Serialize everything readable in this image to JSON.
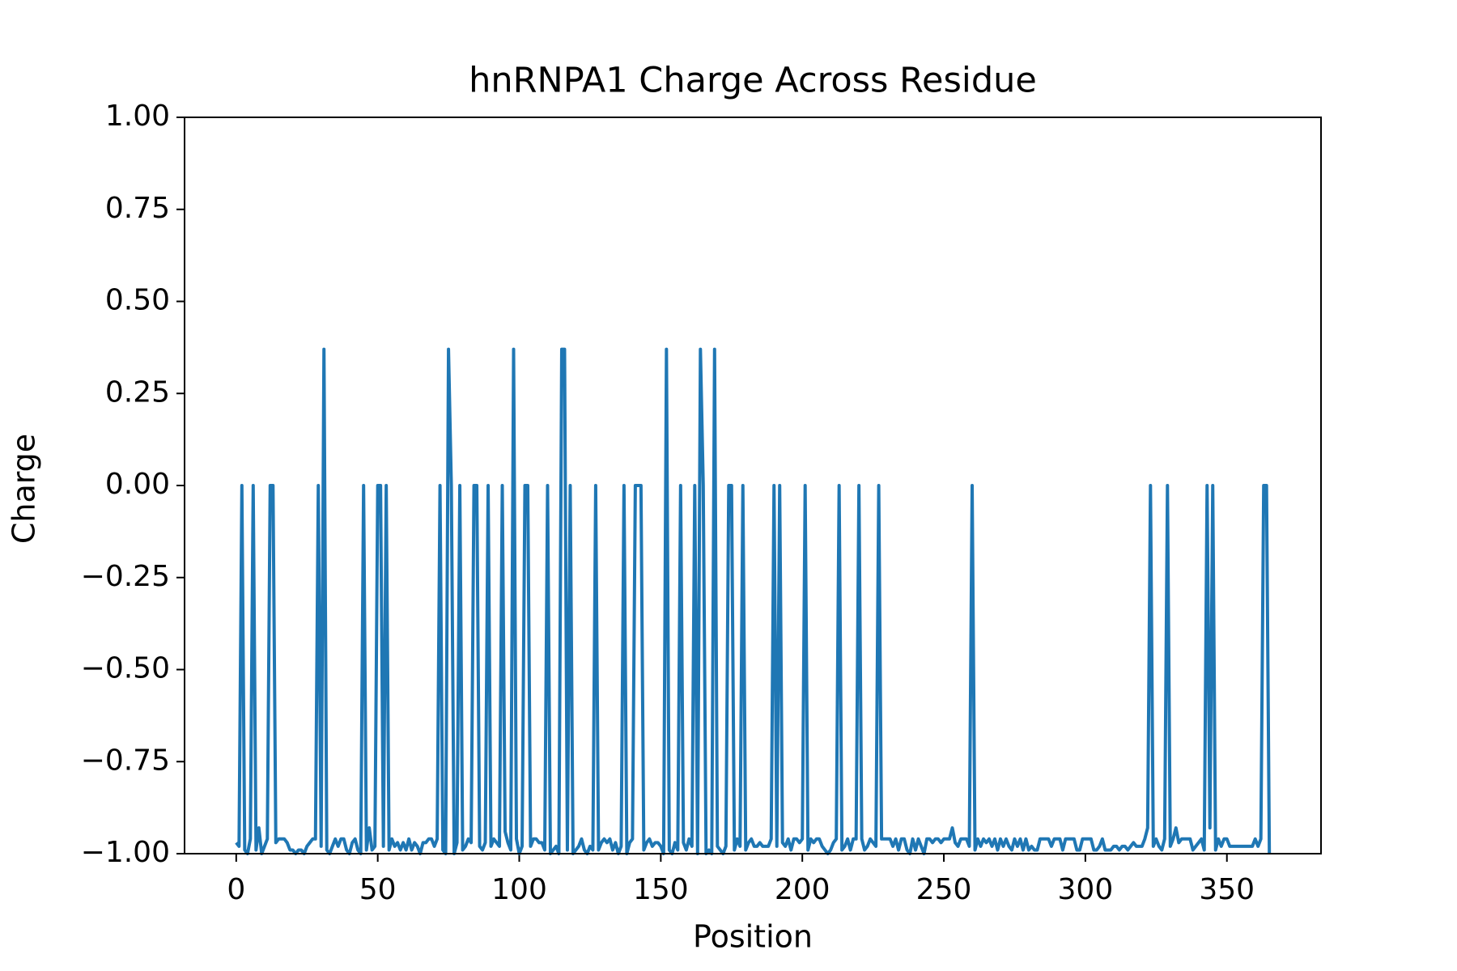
{
  "chart_data": {
    "type": "line",
    "title": "hnRNPA1 Charge Across Residue",
    "xlabel": "Position",
    "ylabel": "Charge",
    "color": "#1f77b4",
    "xlim": [
      -18.25,
      383.25
    ],
    "ylim": [
      -1,
      1
    ],
    "xticks": [
      0,
      50,
      100,
      150,
      200,
      250,
      300,
      350
    ],
    "yticks": [
      {
        "value": -1,
        "label": "−1.00"
      },
      {
        "value": -0.75,
        "label": "−0.75"
      },
      {
        "value": -0.5,
        "label": "−0.50"
      },
      {
        "value": -0.25,
        "label": "−0.25"
      },
      {
        "value": 0,
        "label": "0.00"
      },
      {
        "value": 0.25,
        "label": "0.25"
      },
      {
        "value": 0.5,
        "label": "0.50"
      },
      {
        "value": 0.75,
        "label": "0.75"
      },
      {
        "value": 1,
        "label": "1.00"
      }
    ],
    "x": [
      0,
      1,
      2,
      3,
      4,
      5,
      6,
      7,
      8,
      9,
      10,
      11,
      12,
      13,
      14,
      15,
      16,
      17,
      18,
      19,
      20,
      21,
      22,
      23,
      24,
      25,
      26,
      27,
      28,
      29,
      30,
      31,
      32,
      33,
      34,
      35,
      36,
      37,
      38,
      39,
      40,
      41,
      42,
      43,
      44,
      45,
      46,
      47,
      48,
      49,
      50,
      51,
      52,
      53,
      54,
      55,
      56,
      57,
      58,
      59,
      60,
      61,
      62,
      63,
      64,
      65,
      66,
      67,
      68,
      69,
      70,
      71,
      72,
      73,
      74,
      75,
      76,
      77,
      78,
      79,
      80,
      81,
      82,
      83,
      84,
      85,
      86,
      87,
      88,
      89,
      90,
      91,
      92,
      93,
      94,
      95,
      96,
      97,
      98,
      99,
      100,
      101,
      102,
      103,
      104,
      105,
      106,
      107,
      108,
      109,
      110,
      111,
      112,
      113,
      114,
      115,
      116,
      117,
      118,
      119,
      120,
      121,
      122,
      123,
      124,
      125,
      126,
      127,
      128,
      129,
      130,
      131,
      132,
      133,
      134,
      135,
      136,
      137,
      138,
      139,
      140,
      141,
      142,
      143,
      144,
      145,
      146,
      147,
      148,
      149,
      150,
      151,
      152,
      153,
      154,
      155,
      156,
      157,
      158,
      159,
      160,
      161,
      162,
      163,
      164,
      165,
      166,
      167,
      168,
      169,
      170,
      171,
      172,
      173,
      174,
      175,
      176,
      177,
      178,
      179,
      180,
      181,
      182,
      183,
      184,
      185,
      186,
      187,
      188,
      189,
      190,
      191,
      192,
      193,
      194,
      195,
      196,
      197,
      198,
      199,
      200,
      201,
      202,
      203,
      204,
      205,
      206,
      207,
      208,
      209,
      210,
      211,
      212,
      213,
      214,
      215,
      216,
      217,
      218,
      219,
      220,
      221,
      222,
      223,
      224,
      225,
      226,
      227,
      228,
      229,
      230,
      231,
      232,
      233,
      234,
      235,
      236,
      237,
      238,
      239,
      240,
      241,
      242,
      243,
      244,
      245,
      246,
      247,
      248,
      249,
      250,
      251,
      252,
      253,
      254,
      255,
      256,
      257,
      258,
      259,
      260,
      261,
      262,
      263,
      264,
      265,
      266,
      267,
      268,
      269,
      270,
      271,
      272,
      273,
      274,
      275,
      276,
      277,
      278,
      279,
      280,
      281,
      282,
      283,
      284,
      285,
      286,
      287,
      288,
      289,
      290,
      291,
      292,
      293,
      294,
      295,
      296,
      297,
      298,
      299,
      300,
      301,
      302,
      303,
      304,
      305,
      306,
      307,
      308,
      309,
      310,
      311,
      312,
      313,
      314,
      315,
      316,
      317,
      318,
      319,
      320,
      321,
      322,
      323,
      324,
      325,
      326,
      327,
      328,
      329,
      330,
      331,
      332,
      333,
      334,
      335,
      336,
      337,
      338,
      339,
      340,
      341,
      342,
      343,
      344,
      345,
      346,
      347,
      348,
      349,
      350,
      351,
      352,
      353,
      354,
      355,
      356,
      357,
      358,
      359,
      360,
      361,
      362,
      363,
      364,
      365
    ],
    "values": [
      -0.97,
      -0.98,
      0,
      -0.99,
      -1,
      -0.96,
      0,
      -0.99,
      -0.93,
      -1,
      -0.98,
      -0.96,
      0,
      0,
      -0.97,
      -0.96,
      -0.96,
      -0.96,
      -0.97,
      -0.99,
      -0.99,
      -1,
      -0.99,
      -0.99,
      -1,
      -0.98,
      -0.97,
      -0.96,
      -0.96,
      0,
      -0.98,
      0.37,
      -0.99,
      -1,
      -0.98,
      -0.96,
      -0.98,
      -0.96,
      -0.96,
      -0.99,
      -1,
      -0.97,
      -0.96,
      -0.99,
      -1,
      0,
      -0.99,
      -0.93,
      -0.99,
      -0.98,
      0,
      0,
      -0.98,
      0,
      -0.99,
      -0.96,
      -0.98,
      -0.97,
      -0.99,
      -0.97,
      -0.99,
      -0.96,
      -0.99,
      -0.97,
      -0.98,
      -1,
      -0.97,
      -0.97,
      -0.96,
      -0.96,
      -0.98,
      -0.96,
      0,
      -0.99,
      -1,
      0.37,
      0,
      -1,
      -0.97,
      0,
      -0.99,
      -0.98,
      -0.96,
      -0.97,
      0,
      0,
      -0.98,
      -0.99,
      -0.97,
      0,
      -0.98,
      -0.96,
      -0.97,
      -0.98,
      0,
      -0.94,
      -0.97,
      -0.99,
      0.37,
      -0.96,
      -1,
      -0.98,
      0,
      0,
      -0.98,
      -0.96,
      -0.96,
      -0.97,
      -0.97,
      -0.99,
      0,
      -1,
      -0.99,
      -0.98,
      -1,
      0.37,
      0.37,
      -0.99,
      0,
      -1,
      -0.99,
      -0.98,
      -0.96,
      -0.99,
      -1,
      -0.98,
      -0.99,
      0,
      -0.99,
      -0.97,
      -0.96,
      -0.97,
      -0.96,
      -0.99,
      -0.97,
      -1,
      -0.98,
      0,
      -1,
      -0.97,
      -0.96,
      0,
      0,
      0,
      -0.99,
      -0.97,
      -0.96,
      -0.98,
      -0.97,
      -0.97,
      -0.98,
      -1,
      0.37,
      -0.99,
      -1,
      -0.97,
      -0.99,
      0,
      -0.97,
      -0.99,
      -0.96,
      -0.98,
      0,
      -1,
      0.37,
      0,
      -1,
      -0.99,
      -1,
      0.37,
      -0.98,
      -0.99,
      -1,
      -0.98,
      0,
      0,
      -0.99,
      -0.96,
      -0.98,
      0,
      -0.99,
      -0.97,
      -0.96,
      -0.98,
      -0.98,
      -0.97,
      -0.98,
      -0.98,
      -0.98,
      -0.96,
      0,
      -0.98,
      0,
      -0.97,
      -0.98,
      -0.96,
      -0.99,
      -0.96,
      -0.96,
      -0.97,
      -0.96,
      0,
      -0.99,
      -0.96,
      -0.97,
      -0.96,
      -0.96,
      -0.98,
      -0.99,
      -1,
      -0.99,
      -0.97,
      -0.96,
      0,
      -0.99,
      -0.98,
      -0.96,
      -0.99,
      -0.96,
      -0.96,
      0,
      -0.96,
      -0.99,
      -0.98,
      -0.96,
      -0.97,
      -0.98,
      0,
      -0.96,
      -0.96,
      -0.96,
      -0.96,
      -0.98,
      -0.96,
      -0.99,
      -0.96,
      -0.96,
      -0.99,
      -1,
      -0.96,
      -0.99,
      -0.96,
      -0.98,
      -1,
      -0.96,
      -0.96,
      -0.97,
      -0.96,
      -0.96,
      -0.97,
      -0.96,
      -0.96,
      -0.96,
      -0.93,
      -0.97,
      -0.98,
      -0.96,
      -0.96,
      -0.96,
      -0.98,
      0,
      -0.99,
      -0.96,
      -0.98,
      -0.96,
      -0.97,
      -0.96,
      -0.98,
      -0.96,
      -0.99,
      -0.96,
      -0.98,
      -0.96,
      -0.98,
      -0.99,
      -0.96,
      -0.98,
      -0.96,
      -0.99,
      -0.96,
      -0.99,
      -0.98,
      -0.99,
      -0.99,
      -0.96,
      -0.96,
      -0.96,
      -0.96,
      -0.98,
      -0.96,
      -0.96,
      -0.96,
      -0.99,
      -0.96,
      -0.96,
      -0.96,
      -0.96,
      -0.99,
      -0.99,
      -0.96,
      -0.96,
      -0.96,
      -0.96,
      -0.99,
      -0.99,
      -0.98,
      -0.96,
      -0.99,
      -0.99,
      -0.99,
      -0.98,
      -0.98,
      -0.99,
      -0.98,
      -0.98,
      -0.99,
      -0.98,
      -0.97,
      -0.98,
      -0.98,
      -0.98,
      -0.96,
      -0.93,
      0,
      -0.98,
      -0.96,
      -0.98,
      -0.99,
      -0.96,
      0,
      -0.98,
      -0.96,
      -0.93,
      -0.97,
      -0.96,
      -0.96,
      -0.96,
      -0.96,
      -0.99,
      -0.98,
      -0.97,
      -0.96,
      -0.99,
      0,
      -0.93,
      0,
      -0.99,
      -0.96,
      -0.98,
      -0.96,
      -0.96,
      -0.98,
      -0.98,
      -0.98,
      -0.98,
      -0.98,
      -0.98,
      -0.98,
      -0.98,
      -0.98,
      -0.96,
      -0.98,
      -0.96,
      0,
      0,
      -1
    ]
  }
}
